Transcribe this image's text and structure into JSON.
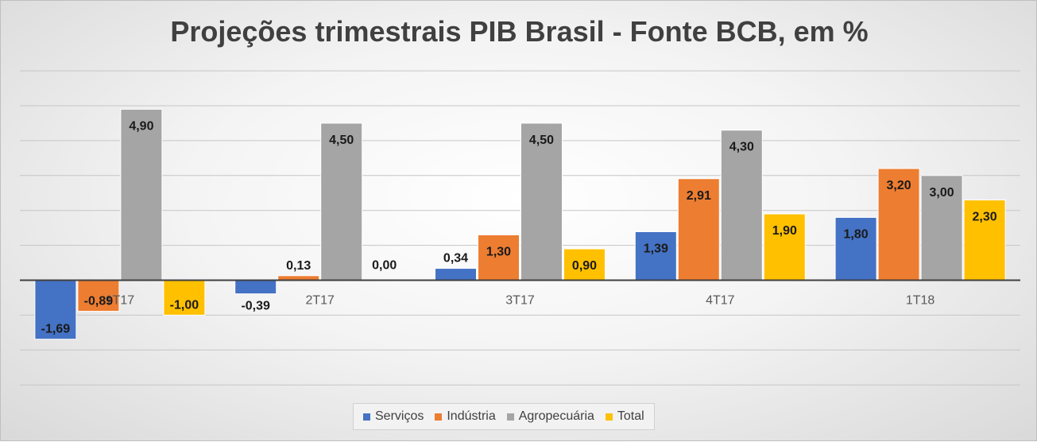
{
  "chart_data": {
    "type": "bar",
    "title": "Projeções trimestrais PIB Brasil - Fonte BCB, em %",
    "categories": [
      "1T17",
      "2T17",
      "3T17",
      "4T17",
      "1T18"
    ],
    "series": [
      {
        "name": "Serviços",
        "color": "#4472c4",
        "values": [
          -1.69,
          -0.39,
          0.34,
          1.39,
          1.8
        ],
        "labels": [
          "-1,69",
          "-0,39",
          "0,34",
          "1,39",
          "1,80"
        ]
      },
      {
        "name": "Indústria",
        "color": "#ed7d31",
        "values": [
          -0.89,
          0.13,
          1.3,
          2.91,
          3.2
        ],
        "labels": [
          "-0,89",
          "0,13",
          "1,30",
          "2,91",
          "3,20"
        ]
      },
      {
        "name": "Agropecuária",
        "color": "#a5a5a5",
        "values": [
          4.9,
          4.5,
          4.5,
          4.3,
          3.0
        ],
        "labels": [
          "4,90",
          "4,50",
          "4,50",
          "4,30",
          "3,00"
        ]
      },
      {
        "name": "Total",
        "color": "#ffc000",
        "values": [
          -1.0,
          0.0,
          0.9,
          1.9,
          2.3
        ],
        "labels": [
          "-1,00",
          "0,00",
          "0,90",
          "1,90",
          "2,30"
        ]
      }
    ],
    "ylim": [
      -3,
      6
    ],
    "gridline_step": 1,
    "grid": true,
    "legend_position": "bottom"
  }
}
